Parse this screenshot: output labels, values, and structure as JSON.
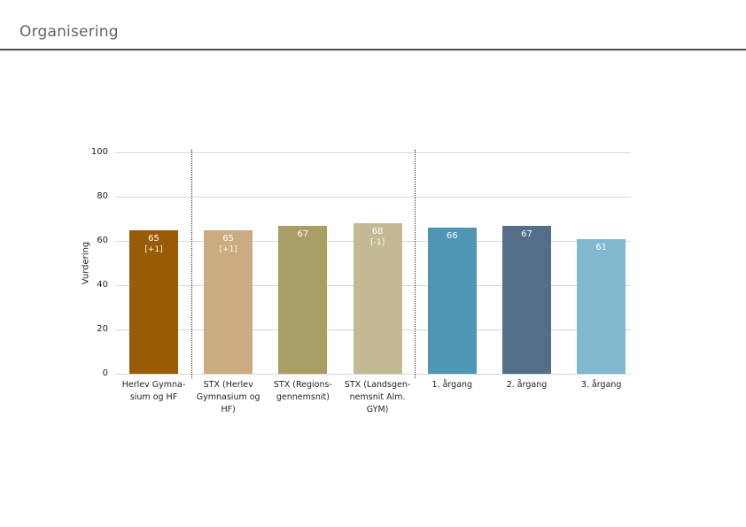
{
  "page": {
    "title": "Organisering"
  },
  "chart_data": {
    "type": "bar",
    "title": "Organisering",
    "ylabel": "Vurdering",
    "xlabel": "",
    "ylim": [
      0,
      100
    ],
    "yticks": [
      0,
      20,
      40,
      60,
      80,
      100
    ],
    "grid": true,
    "legend": "none",
    "categories": [
      [
        "Herlev Gymna-",
        "sium og HF"
      ],
      [
        "STX (Herlev",
        "Gymnasium og",
        "HF)"
      ],
      [
        "STX (Regions-",
        "gennemsnit)"
      ],
      [
        "STX (Landsgen-",
        "nemsnit Alm.",
        "GYM)"
      ],
      [
        "1. årgang"
      ],
      [
        "2. årgang"
      ],
      [
        "3. årgang"
      ]
    ],
    "values": [
      65,
      65,
      67,
      68,
      66,
      67,
      61
    ],
    "changes": [
      "[+1]",
      "[+1]",
      "",
      "[-1]",
      "",
      "",
      ""
    ],
    "bar_colors": [
      "#9a5b06",
      "#cbab80",
      "#a89e66",
      "#c3ba93",
      "#4e96b3",
      "#546d89",
      "#80b8d0"
    ],
    "value_label_color": "#ffffff",
    "gridline_color": "#d9d9d9",
    "separators_after_bar_index": [
      0,
      3
    ]
  }
}
